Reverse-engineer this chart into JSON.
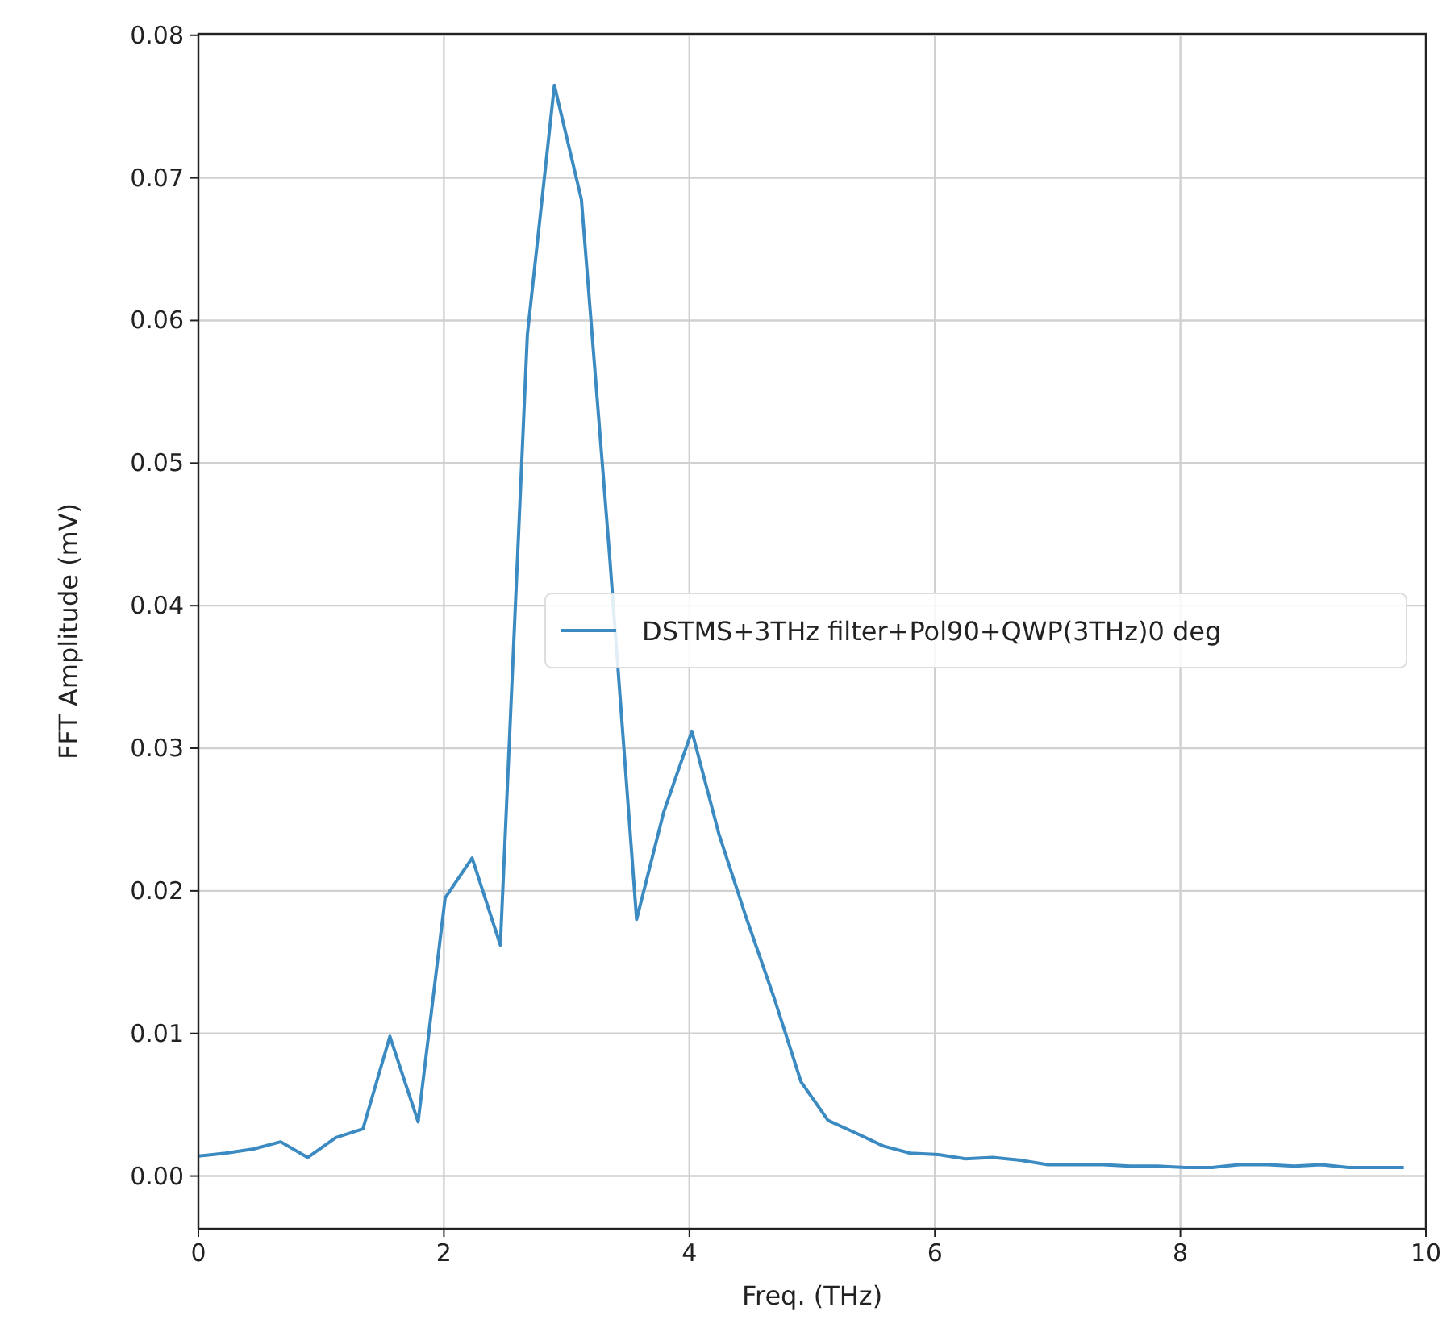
{
  "chart_data": {
    "type": "line",
    "xlabel": "Freq. (THz)",
    "ylabel": "FFT Amplitude (mV)",
    "x": [
      0,
      0.22,
      0.45,
      0.67,
      0.89,
      1.12,
      1.34,
      1.56,
      1.79,
      2.01,
      2.23,
      2.46,
      2.68,
      2.9,
      3.12,
      3.35,
      3.57,
      3.79,
      4.02,
      4.24,
      4.46,
      4.69,
      4.91,
      5.13,
      5.36,
      5.58,
      5.8,
      6.03,
      6.25,
      6.47,
      6.7,
      6.92,
      7.14,
      7.37,
      7.59,
      7.81,
      8.04,
      8.26,
      8.48,
      8.71,
      8.93,
      9.15,
      9.37,
      9.6,
      9.82
    ],
    "series": [
      {
        "name": "DSTMS+3THz filter+Pol90+QWP(3THz)0 deg",
        "color": "#3b8bc2",
        "values": [
          0.0014,
          0.0016,
          0.0019,
          0.0024,
          0.0013,
          0.0027,
          0.0033,
          0.0098,
          0.0038,
          0.0195,
          0.0223,
          0.0162,
          0.059,
          0.0765,
          0.0685,
          0.0435,
          0.018,
          0.0255,
          0.0312,
          0.024,
          0.0182,
          0.0125,
          0.0066,
          0.0039,
          0.003,
          0.0021,
          0.0016,
          0.0015,
          0.0012,
          0.0013,
          0.0011,
          0.0008,
          0.0008,
          0.0008,
          0.0007,
          0.0007,
          0.0006,
          0.0006,
          0.0008,
          0.0008,
          0.0007,
          0.0008,
          0.0006,
          0.0006,
          0.0006
        ]
      }
    ],
    "xlim": [
      0,
      10
    ],
    "xticks": [
      0,
      2,
      4,
      6,
      8,
      10
    ],
    "ylim": [
      -0.0037,
      0.0801
    ],
    "yticks": [
      {
        "value": 0,
        "label": "0.00"
      },
      {
        "value": 0.01,
        "label": "0.01"
      },
      {
        "value": 0.02,
        "label": "0.02"
      },
      {
        "value": 0.03,
        "label": "0.03"
      },
      {
        "value": 0.04,
        "label": "0.04"
      },
      {
        "value": 0.05,
        "label": "0.05"
      },
      {
        "value": 0.06,
        "label": "0.06"
      },
      {
        "value": 0.07,
        "label": "0.07"
      },
      {
        "value": 0.08,
        "label": "0.08"
      }
    ],
    "grid": true,
    "legend": "right",
    "marker": "none",
    "line_style": "solid"
  }
}
